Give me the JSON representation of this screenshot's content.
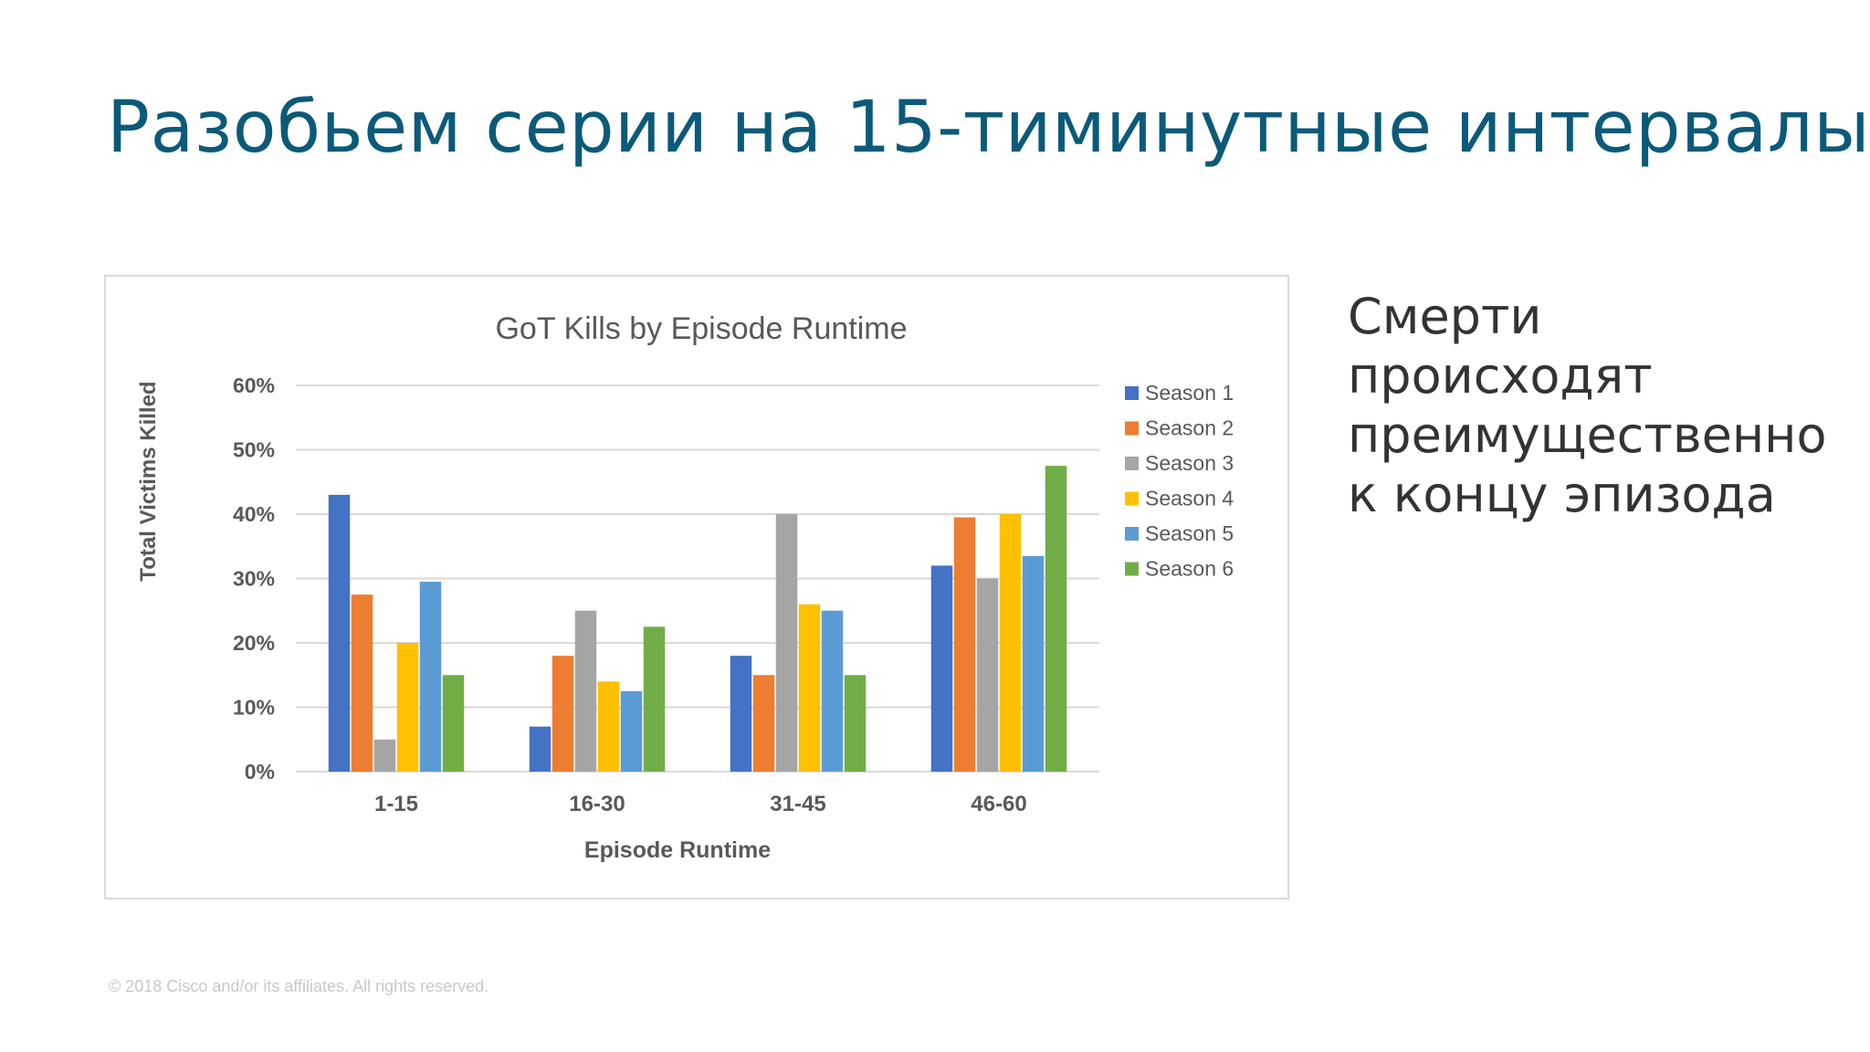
{
  "slide": {
    "title": "Разобьем серии на 15-тиминутные интервалы",
    "side_text": "Смерти\nпроисходят\nпреимущественно\nк концу эпизода",
    "footer": "© 2018  Cisco and/or its affiliates. All rights reserved."
  },
  "chart_data": {
    "type": "bar",
    "title": "GoT Kills by Episode Runtime",
    "xlabel": "Episode Runtime",
    "ylabel": "Total Victims Killed",
    "categories": [
      "1-15",
      "16-30",
      "31-45",
      "46-60"
    ],
    "ylim": [
      0,
      60
    ],
    "yticks": [
      0,
      10,
      20,
      30,
      40,
      50,
      60
    ],
    "ytick_labels": [
      "0%",
      "10%",
      "20%",
      "30%",
      "40%",
      "50%",
      "60%"
    ],
    "grid": true,
    "legend_position": "right",
    "series": [
      {
        "name": "Season 1",
        "color": "#4472c4",
        "values": [
          43,
          7,
          18,
          32
        ]
      },
      {
        "name": "Season 2",
        "color": "#ed7d31",
        "values": [
          27.5,
          18,
          15,
          39.5
        ]
      },
      {
        "name": "Season 3",
        "color": "#a5a5a5",
        "values": [
          5,
          25,
          40,
          30
        ]
      },
      {
        "name": "Season 4",
        "color": "#ffc000",
        "values": [
          20,
          14,
          26,
          40
        ]
      },
      {
        "name": "Season 5",
        "color": "#5b9bd5",
        "values": [
          29.5,
          12.5,
          25,
          33.5
        ]
      },
      {
        "name": "Season 6",
        "color": "#70ad47",
        "values": [
          15,
          22.5,
          15,
          47.5
        ]
      }
    ]
  }
}
